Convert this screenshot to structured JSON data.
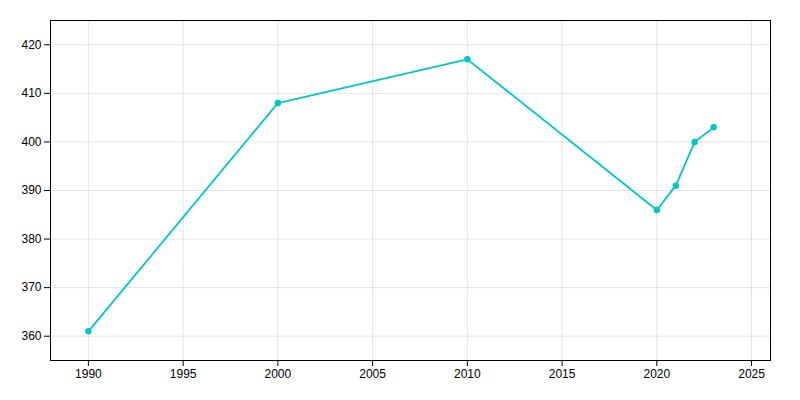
{
  "chart_data": {
    "type": "line",
    "x": [
      1990,
      2000,
      2010,
      2020,
      2021,
      2022,
      2023
    ],
    "values": [
      361,
      408,
      417,
      386,
      391,
      400,
      403
    ],
    "color": "#00C8C8",
    "marker": "o",
    "xlim": [
      1988,
      2026
    ],
    "ylim": [
      355,
      425
    ],
    "xticks": [
      1990,
      1995,
      2000,
      2005,
      2010,
      2015,
      2020,
      2025
    ],
    "yticks": [
      360,
      370,
      380,
      390,
      400,
      410,
      420
    ],
    "grid": true
  }
}
